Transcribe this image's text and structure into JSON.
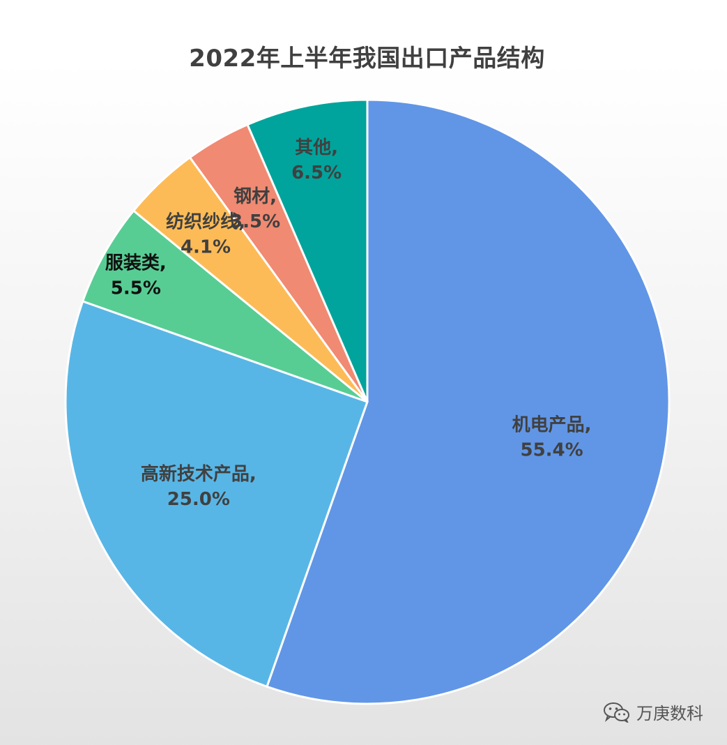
{
  "chart_data": {
    "type": "pie",
    "title": "2022年上半年我国出口产品结构",
    "start_angle_deg": 0,
    "direction": "clockwise",
    "slices": [
      {
        "name": "机电产品",
        "value": 55.4,
        "label": "55.4%",
        "color": "#6196E6",
        "label_color": "#404040"
      },
      {
        "name": "高新技术产品",
        "value": 25.0,
        "label": "25.0%",
        "color": "#58B6E6",
        "label_color": "#404040"
      },
      {
        "name": "服装类",
        "value": 5.5,
        "label": "5.5%",
        "color": "#57CD94",
        "label_color": "#111111"
      },
      {
        "name": "纺织纱线",
        "value": 4.1,
        "label": "4.1%",
        "color": "#FDBB57",
        "label_color": "#404040"
      },
      {
        "name": "钢材",
        "value": 3.5,
        "label": "3.5%",
        "color": "#F08A72",
        "label_color": "#404040"
      },
      {
        "name": "其他",
        "value": 6.5,
        "label": "6.5%",
        "color": "#01A49C",
        "label_color": "#404040"
      }
    ]
  },
  "watermark": {
    "icon": "wechat-icon",
    "text": "万庚数科"
  }
}
